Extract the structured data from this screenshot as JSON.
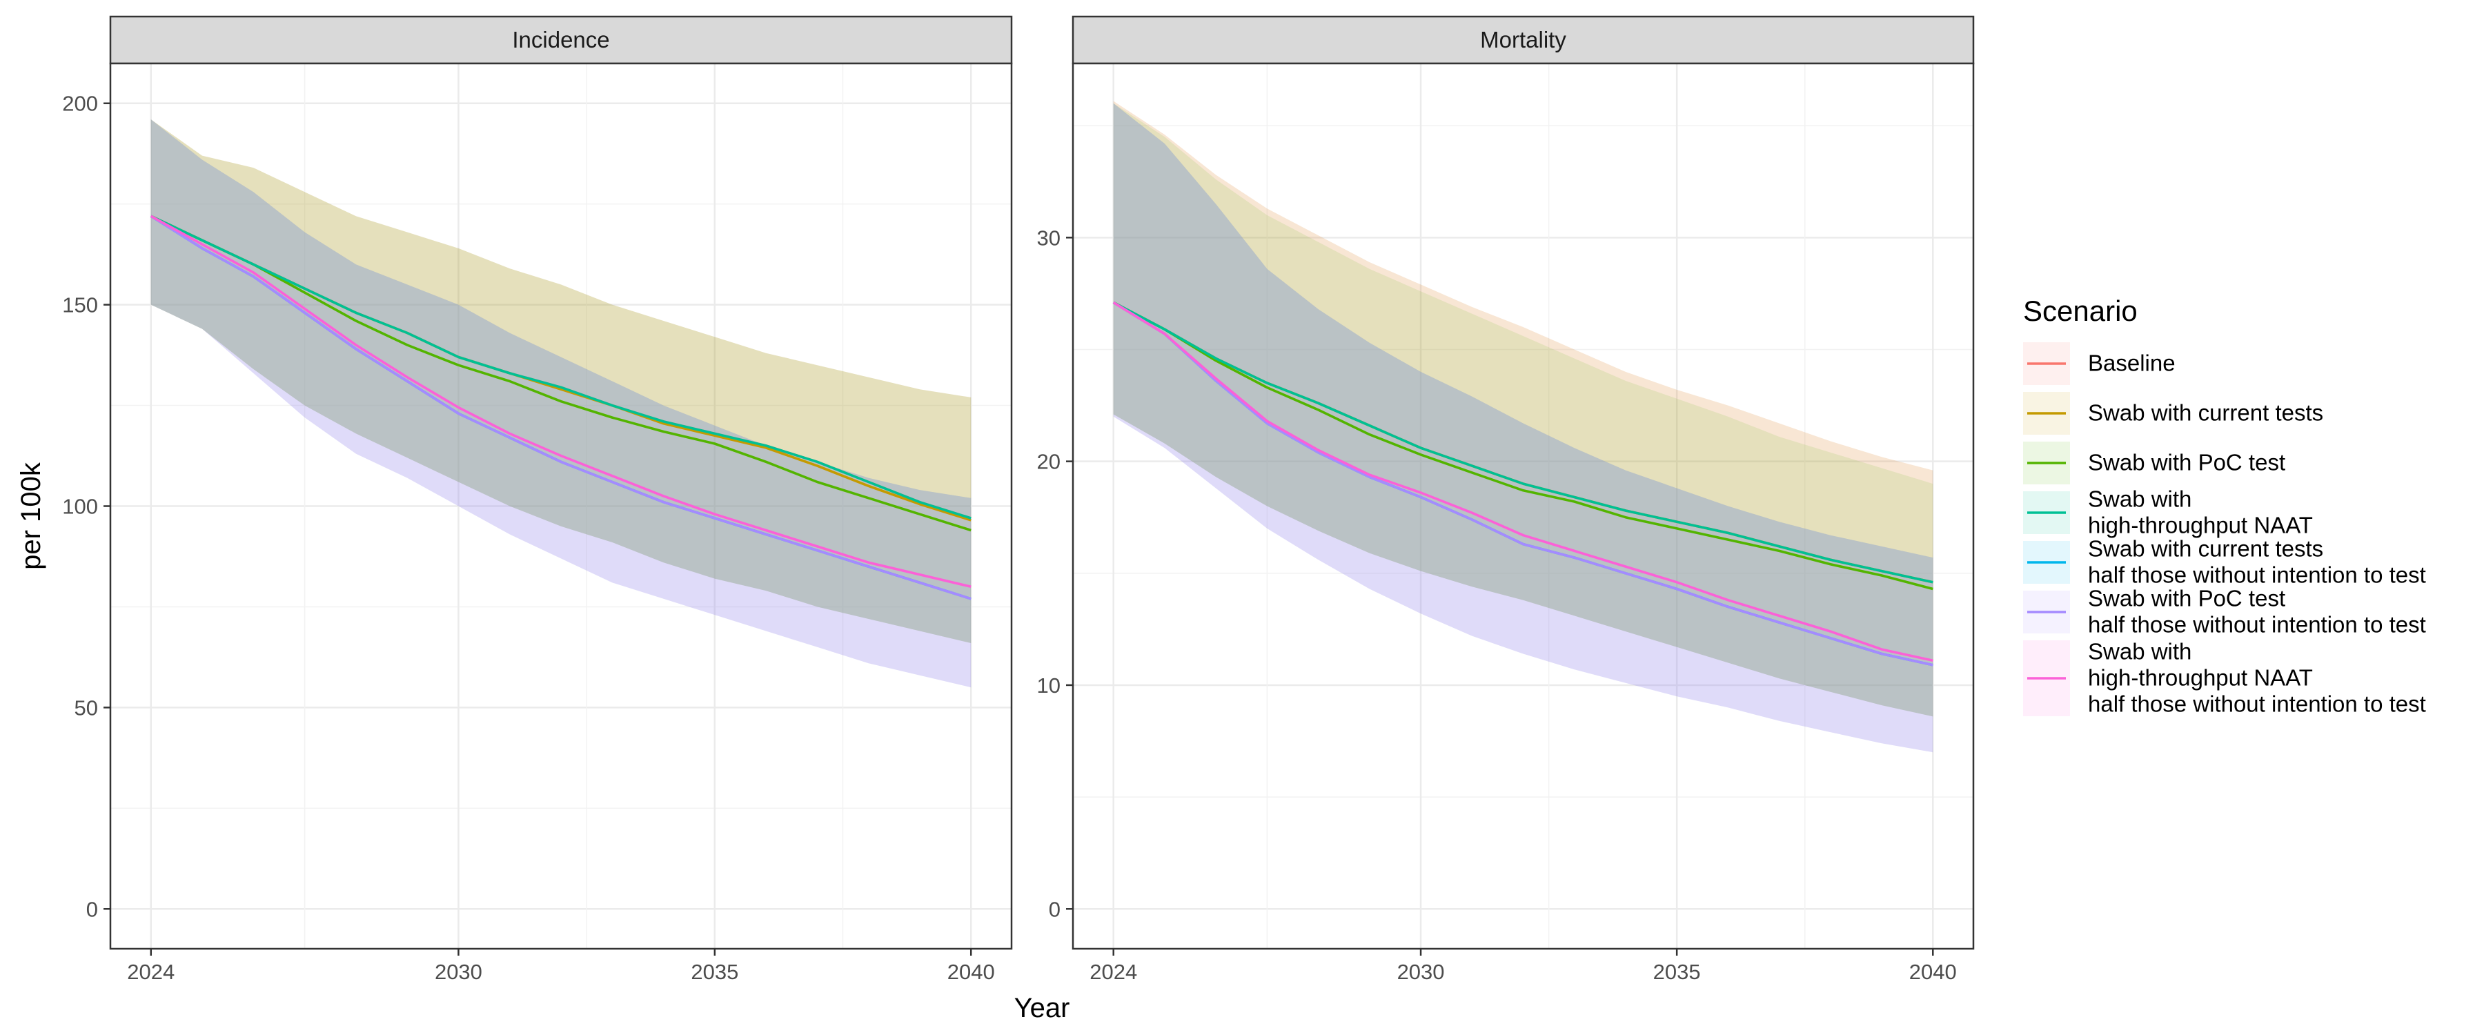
{
  "chart_data": [
    {
      "type": "line",
      "title": "Incidence",
      "xlabel": "Year",
      "ylabel": "per 100k",
      "xlim": [
        2024,
        2040
      ],
      "ylim": [
        0,
        200
      ],
      "xticks": [
        "2024",
        "2030",
        "2035",
        "2040"
      ],
      "yticks": [
        "0",
        "50",
        "100",
        "150",
        "200"
      ],
      "grid": true,
      "x": [
        2024,
        2025,
        2026,
        2027,
        2028,
        2029,
        2030,
        2031,
        2032,
        2033,
        2034,
        2035,
        2036,
        2037,
        2038,
        2039,
        2040
      ],
      "series": [
        {
          "name": "Baseline",
          "color": "#F8766D",
          "values": [
            172,
            166,
            160,
            154,
            148,
            143,
            137,
            133,
            129.5,
            125,
            121,
            118,
            115,
            111,
            106,
            101,
            97
          ],
          "lower": [
            150,
            144,
            134,
            125,
            118,
            112,
            106,
            100,
            95,
            91,
            86,
            82,
            79,
            75,
            72,
            69,
            66
          ],
          "upper": [
            196,
            187,
            184,
            178,
            172,
            168,
            164,
            159,
            155,
            150,
            146,
            142,
            138,
            135,
            132,
            129,
            127
          ]
        },
        {
          "name": "Swab with current tests",
          "color": "#C49A00",
          "values": [
            172,
            166,
            160,
            154,
            148,
            143,
            137,
            133,
            129,
            125,
            120.5,
            117.5,
            114.5,
            110,
            105,
            100.5,
            96.5
          ],
          "lower": [
            150,
            144,
            134,
            125,
            118,
            112,
            106,
            100,
            95,
            91,
            86,
            82,
            79,
            75,
            72,
            69,
            66
          ],
          "upper": [
            196,
            187,
            184,
            178,
            172,
            168,
            164,
            159,
            155,
            150,
            146,
            142,
            138,
            135,
            132,
            129,
            127
          ]
        },
        {
          "name": "Swab with PoC test",
          "color": "#53B400",
          "values": [
            172,
            166,
            160,
            153,
            146,
            140,
            135,
            131,
            126,
            122,
            118.5,
            115.5,
            111,
            106,
            102,
            98,
            94
          ],
          "lower": [
            150,
            144,
            134,
            125,
            118,
            112,
            106,
            100,
            95,
            91,
            86,
            82,
            79,
            75,
            72,
            69,
            66
          ],
          "upper": [
            196,
            187,
            184,
            178,
            172,
            168,
            164,
            159,
            155,
            150,
            146,
            142,
            138,
            135,
            132,
            129,
            127
          ]
        },
        {
          "name": "Swab with\nhigh-throughput NAAT",
          "color": "#00C094",
          "values": [
            172,
            166,
            160,
            154,
            148,
            143,
            137,
            133,
            129.5,
            125,
            121,
            118,
            115,
            111,
            106,
            101,
            97
          ],
          "lower": [
            150,
            144,
            134,
            125,
            118,
            112,
            106,
            100,
            95,
            91,
            86,
            82,
            79,
            75,
            72,
            69,
            66
          ],
          "upper": [
            196,
            186,
            178,
            168,
            160,
            155,
            150,
            143,
            137,
            131,
            125,
            120,
            115,
            111,
            107,
            104,
            102
          ]
        },
        {
          "name": "Swab with current tests\nhalf those without intention to test",
          "color": "#00B6EB",
          "values": [
            172,
            164,
            157,
            148,
            139,
            131,
            123,
            117,
            111,
            106,
            101,
            97,
            93,
            89,
            85,
            81,
            77
          ],
          "lower": [
            150,
            144,
            133,
            122,
            113,
            107,
            100,
            93,
            87,
            81,
            77,
            73,
            69,
            65,
            61,
            58,
            55
          ],
          "upper": [
            196,
            186,
            178,
            168,
            160,
            155,
            150,
            143,
            137,
            131,
            125,
            120,
            115,
            111,
            107,
            104,
            102
          ]
        },
        {
          "name": "Swab with PoC test\nhalf those without intention to test",
          "color": "#A58AFF",
          "values": [
            172,
            164,
            157,
            148,
            139,
            131,
            123,
            117,
            111,
            106,
            101,
            97,
            93,
            89,
            85,
            81,
            77
          ],
          "lower": [
            150,
            144,
            133,
            122,
            113,
            107,
            100,
            93,
            87,
            81,
            77,
            73,
            69,
            65,
            61,
            58,
            55
          ],
          "upper": [
            196,
            186,
            178,
            168,
            160,
            155,
            150,
            143,
            137,
            131,
            125,
            120,
            115,
            111,
            107,
            104,
            102
          ]
        },
        {
          "name": "Swab with\nhigh-throughput NAAT\nhalf those without intention to test",
          "color": "#FB61D7",
          "values": [
            172,
            165,
            158,
            149,
            140,
            132,
            124.5,
            118,
            112.5,
            107.5,
            102.5,
            98,
            94,
            90,
            86,
            83,
            80
          ],
          "lower": [
            150,
            144,
            133,
            122,
            113,
            107,
            100,
            93,
            87,
            81,
            77,
            73,
            69,
            65,
            61,
            58,
            55
          ],
          "upper": [
            196,
            186,
            178,
            168,
            160,
            155,
            150,
            143,
            137,
            131,
            125,
            120,
            115,
            111,
            107,
            104,
            102
          ]
        }
      ]
    },
    {
      "type": "line",
      "title": "Mortality",
      "xlabel": "Year",
      "ylabel": "per 100k",
      "xlim": [
        2024,
        2040
      ],
      "ylim": [
        0,
        36
      ],
      "xticks": [
        "2024",
        "2030",
        "2035",
        "2040"
      ],
      "yticks": [
        "0",
        "10",
        "20",
        "30"
      ],
      "grid": true,
      "x": [
        2024,
        2025,
        2026,
        2027,
        2028,
        2029,
        2030,
        2031,
        2032,
        2033,
        2034,
        2035,
        2036,
        2037,
        2038,
        2039,
        2040
      ],
      "series": [
        {
          "name": "Baseline",
          "color": "#F8766D",
          "values": [
            27.1,
            25.9,
            24.6,
            23.5,
            22.6,
            21.6,
            20.6,
            19.8,
            19.0,
            18.4,
            17.8,
            17.3,
            16.8,
            16.2,
            15.6,
            15.1,
            14.6
          ],
          "lower": [
            22.1,
            20.8,
            19.3,
            18.0,
            16.9,
            15.9,
            15.1,
            14.4,
            13.8,
            13.1,
            12.4,
            11.7,
            11.0,
            10.3,
            9.7,
            9.1,
            8.6
          ],
          "upper": [
            36.1,
            34.6,
            32.8,
            31.3,
            30.1,
            28.9,
            27.9,
            26.9,
            26.0,
            25.0,
            24.0,
            23.2,
            22.5,
            21.7,
            20.9,
            20.2,
            19.6
          ]
        },
        {
          "name": "Swab with current tests",
          "color": "#C49A00",
          "values": [
            27.1,
            25.9,
            24.6,
            23.5,
            22.6,
            21.6,
            20.6,
            19.8,
            19.0,
            18.4,
            17.8,
            17.3,
            16.8,
            16.2,
            15.6,
            15.1,
            14.6
          ],
          "lower": [
            22.1,
            20.8,
            19.3,
            18.0,
            16.9,
            15.9,
            15.1,
            14.4,
            13.8,
            13.1,
            12.4,
            11.7,
            11.0,
            10.3,
            9.7,
            9.1,
            8.6
          ],
          "upper": [
            36.1,
            34.6,
            32.8,
            31.3,
            30.1,
            28.9,
            27.9,
            26.9,
            26.0,
            25.0,
            24.0,
            23.2,
            22.5,
            21.7,
            20.9,
            20.2,
            19.6
          ]
        },
        {
          "name": "Swab with PoC test",
          "color": "#53B400",
          "values": [
            27.1,
            25.9,
            24.5,
            23.3,
            22.3,
            21.2,
            20.3,
            19.5,
            18.7,
            18.2,
            17.5,
            17.0,
            16.5,
            16.0,
            15.4,
            14.9,
            14.3
          ],
          "lower": [
            22.1,
            20.8,
            19.3,
            18.0,
            16.9,
            15.9,
            15.1,
            14.4,
            13.8,
            13.1,
            12.4,
            11.7,
            11.0,
            10.3,
            9.7,
            9.1,
            8.6
          ],
          "upper": [
            36.0,
            34.5,
            32.6,
            31.0,
            29.8,
            28.6,
            27.6,
            26.6,
            25.6,
            24.6,
            23.6,
            22.8,
            22.0,
            21.1,
            20.4,
            19.7,
            19.0
          ]
        },
        {
          "name": "Swab with\nhigh-throughput NAAT",
          "color": "#00C094",
          "values": [
            27.1,
            25.9,
            24.6,
            23.5,
            22.6,
            21.6,
            20.6,
            19.8,
            19.0,
            18.4,
            17.8,
            17.3,
            16.8,
            16.2,
            15.6,
            15.1,
            14.6
          ],
          "lower": [
            22.1,
            20.8,
            19.3,
            18.0,
            16.9,
            15.9,
            15.1,
            14.4,
            13.8,
            13.1,
            12.4,
            11.7,
            11.0,
            10.3,
            9.7,
            9.1,
            8.6
          ],
          "upper": [
            36.0,
            34.2,
            31.5,
            28.6,
            26.8,
            25.3,
            24.0,
            22.9,
            21.7,
            20.6,
            19.6,
            18.8,
            18.0,
            17.3,
            16.7,
            16.2,
            15.7
          ]
        },
        {
          "name": "Swab with current tests\nhalf those without intention to test",
          "color": "#00B6EB",
          "values": [
            27.1,
            25.7,
            23.6,
            21.7,
            20.4,
            19.3,
            18.4,
            17.4,
            16.3,
            15.7,
            15.0,
            14.3,
            13.5,
            12.8,
            12.1,
            11.4,
            10.9
          ],
          "lower": [
            22.0,
            20.6,
            18.8,
            17.0,
            15.6,
            14.3,
            13.2,
            12.2,
            11.4,
            10.7,
            10.1,
            9.5,
            9.0,
            8.4,
            7.9,
            7.4,
            7.0
          ],
          "upper": [
            36.0,
            34.2,
            31.5,
            28.6,
            26.8,
            25.3,
            24.0,
            22.9,
            21.7,
            20.6,
            19.6,
            18.8,
            18.0,
            17.3,
            16.7,
            16.2,
            15.7
          ]
        },
        {
          "name": "Swab with PoC test\nhalf those without intention to test",
          "color": "#A58AFF",
          "values": [
            27.1,
            25.7,
            23.6,
            21.7,
            20.4,
            19.3,
            18.4,
            17.4,
            16.3,
            15.7,
            15.0,
            14.3,
            13.5,
            12.8,
            12.1,
            11.4,
            10.9
          ],
          "lower": [
            22.0,
            20.6,
            18.8,
            17.0,
            15.6,
            14.3,
            13.2,
            12.2,
            11.4,
            10.7,
            10.1,
            9.5,
            9.0,
            8.4,
            7.9,
            7.4,
            7.0
          ],
          "upper": [
            36.0,
            34.2,
            31.5,
            28.6,
            26.8,
            25.3,
            24.0,
            22.9,
            21.7,
            20.6,
            19.6,
            18.8,
            18.0,
            17.3,
            16.7,
            16.2,
            15.7
          ]
        },
        {
          "name": "Swab with\nhigh-throughput NAAT\nhalf those without intention to test",
          "color": "#FB61D7",
          "values": [
            27.1,
            25.7,
            23.7,
            21.8,
            20.5,
            19.4,
            18.6,
            17.7,
            16.7,
            16.0,
            15.3,
            14.6,
            13.8,
            13.1,
            12.4,
            11.6,
            11.1
          ],
          "lower": [
            22.0,
            20.6,
            18.8,
            17.0,
            15.6,
            14.3,
            13.2,
            12.2,
            11.4,
            10.7,
            10.1,
            9.5,
            9.0,
            8.4,
            7.9,
            7.4,
            7.0
          ],
          "upper": [
            36.0,
            34.2,
            31.5,
            28.6,
            26.8,
            25.3,
            24.0,
            22.9,
            21.7,
            20.6,
            19.6,
            18.8,
            18.0,
            17.3,
            16.7,
            16.2,
            15.7
          ]
        }
      ]
    }
  ],
  "legend": {
    "title": "Scenario",
    "placement": "right",
    "items": [
      {
        "label": "Baseline",
        "color": "#F8766D"
      },
      {
        "label": "Swab with current tests",
        "color": "#C49A00"
      },
      {
        "label": "Swab with PoC test",
        "color": "#53B400"
      },
      {
        "label": "Swab with\nhigh-throughput NAAT",
        "color": "#00C094"
      },
      {
        "label": "Swab with current tests\nhalf those without intention to test",
        "color": "#00B6EB"
      },
      {
        "label": "Swab with PoC test\nhalf those without intention to test",
        "color": "#A58AFF"
      },
      {
        "label": "Swab with\nhigh-throughput NAAT\nhalf those without intention to test",
        "color": "#FB61D7"
      }
    ]
  },
  "axes": {
    "x_title": "Year",
    "y_title": "per 100k"
  }
}
